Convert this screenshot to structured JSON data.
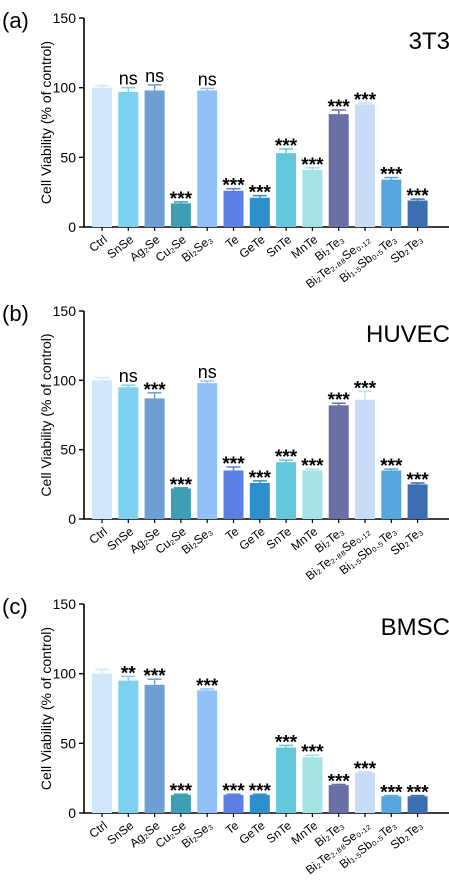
{
  "chart_data": [
    {
      "type": "bar",
      "panel_label": "(a)",
      "cell_label": "3T3",
      "ylabel": "Cell Viability (% of control)",
      "ylim": [
        0,
        150
      ],
      "yticks": [
        0,
        50,
        100,
        150
      ],
      "grid": false,
      "categories": [
        "Ctrl",
        "SnSe",
        "Ag₂Se",
        "Cu₂Se",
        "Bi₂Se₃",
        "Te",
        "GeTe",
        "SnTe",
        "MnTe",
        "Bi₂Te₃",
        "Bi₂Te₂.₈₈Se₀.₁₂",
        "Bi₁.₅Sb₀.₅Te₃",
        "Sb₂Te₃"
      ],
      "values": [
        100,
        97,
        98,
        17,
        98,
        26,
        21,
        53,
        41,
        81,
        88,
        34,
        19
      ],
      "errors": [
        1.5,
        3,
        4,
        1,
        1.5,
        1.5,
        1.5,
        3,
        1.5,
        3,
        1,
        1.5,
        1
      ],
      "significance": [
        "",
        "ns",
        "ns",
        "***",
        "ns",
        "***",
        "***",
        "***",
        "***",
        "***",
        "***",
        "***",
        "***"
      ],
      "colors": [
        "#cfe9fb",
        "#7dd1ee",
        "#6c9fd3",
        "#3d9fb5",
        "#91c2f7",
        "#5c7fe3",
        "#2f8fcd",
        "#63c8dc",
        "#a4e3e5",
        "#6a6fa5",
        "#c7dcf7",
        "#58a6e0",
        "#3b6fb2"
      ]
    },
    {
      "type": "bar",
      "panel_label": "(b)",
      "cell_label": "HUVEC",
      "ylabel": "Cell Viability (% of control)",
      "ylim": [
        0,
        150
      ],
      "yticks": [
        0,
        50,
        100,
        150
      ],
      "grid": false,
      "categories": [
        "Ctrl",
        "SnSe",
        "Ag₂Se",
        "Cu₂Se",
        "Bi₂Se₃",
        "Te",
        "GeTe",
        "SnTe",
        "MnTe",
        "Bi₂Te₃",
        "Bi₂Te₂.₈₈Se₀.₁₂",
        "Bi₁.₅Sb₀.₅Te₃",
        "Sb₂Te₃"
      ],
      "values": [
        100,
        95,
        87,
        22,
        98,
        35,
        26,
        41,
        35,
        82,
        86,
        35,
        25
      ],
      "errors": [
        2,
        1.5,
        4,
        0.5,
        1.5,
        2.5,
        1.5,
        1.5,
        1,
        1.5,
        6,
        1,
        1
      ],
      "significance": [
        "",
        "ns",
        "***",
        "***",
        "ns",
        "***",
        "***",
        "***",
        "***",
        "***",
        "***",
        "***",
        "***"
      ],
      "colors": [
        "#cfe9fb",
        "#7dd1ee",
        "#6c9fd3",
        "#3d9fb5",
        "#91c2f7",
        "#5c7fe3",
        "#2f8fcd",
        "#63c8dc",
        "#a4e3e5",
        "#6a6fa5",
        "#c7dcf7",
        "#58a6e0",
        "#3b6fb2"
      ]
    },
    {
      "type": "bar",
      "panel_label": "(c)",
      "cell_label": "BMSC",
      "ylabel": "Cell Viability (% of control)",
      "ylim": [
        0,
        150
      ],
      "yticks": [
        0,
        50,
        100,
        150
      ],
      "grid": false,
      "categories": [
        "Ctrl",
        "SnSe",
        "Ag₂Se",
        "Cu₂Se",
        "Bi₂Se₃",
        "Te",
        "GeTe",
        "SnTe",
        "MnTe",
        "Bi₂Te₃",
        "Bi₂Te₂.₈₈Se₀.₁₂",
        "Bi₁.₅Sb₀.₅Te₃",
        "Sb₂Te₃"
      ],
      "values": [
        100,
        95,
        92,
        13,
        88,
        13,
        13,
        47,
        40,
        20,
        29,
        12,
        12
      ],
      "errors": [
        3,
        3,
        4,
        0.5,
        1,
        0.5,
        0.5,
        1.5,
        1.5,
        0.5,
        0.5,
        0.5,
        0.5
      ],
      "significance": [
        "",
        "**",
        "***",
        "***",
        "***",
        "***",
        "***",
        "***",
        "***",
        "***",
        "***",
        "***",
        "***"
      ],
      "colors": [
        "#cfe9fb",
        "#7dd1ee",
        "#6c9fd3",
        "#3d9fb5",
        "#91c2f7",
        "#5c7fe3",
        "#2f8fcd",
        "#63c8dc",
        "#a4e3e5",
        "#6a6fa5",
        "#c7dcf7",
        "#58a6e0",
        "#3b6fb2"
      ]
    }
  ]
}
